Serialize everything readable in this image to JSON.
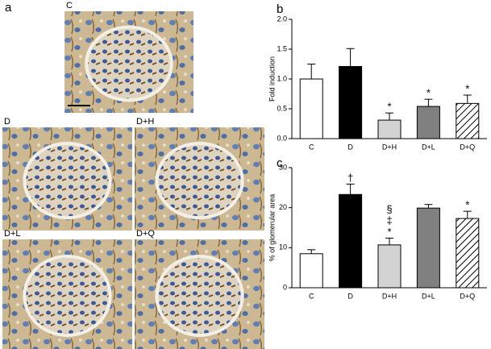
{
  "figure": {
    "panel_label": "a",
    "images": [
      {
        "label": "C"
      },
      {
        "label": "D"
      },
      {
        "label": "D+H"
      },
      {
        "label": "D+L"
      },
      {
        "label": "D+Q"
      }
    ]
  },
  "chart_data": [
    {
      "type": "bar",
      "panel_label": "b",
      "y_label": "Fold induction",
      "categories": [
        "C",
        "D",
        "D+H",
        "D+L",
        "D+Q"
      ],
      "values": [
        1.0,
        1.21,
        0.31,
        0.54,
        0.59
      ],
      "errors": [
        0.25,
        0.3,
        0.12,
        0.12,
        0.14
      ],
      "colors": [
        "#ffffff",
        "#000000",
        "#d3d3d3",
        "#808080",
        "#ffffff"
      ],
      "hatch": [
        false,
        false,
        false,
        false,
        true
      ],
      "annotations": [
        [],
        [],
        [
          "*"
        ],
        [
          "*"
        ],
        [
          "*"
        ]
      ],
      "ylim": [
        0,
        2.0
      ],
      "yticks": [
        {
          "value": 0,
          "label": "0.0"
        },
        0.5,
        {
          "value": 1,
          "label": "1.0"
        },
        1.5,
        {
          "value": 2,
          "label": "2.0"
        }
      ]
    },
    {
      "type": "bar",
      "panel_label": "c",
      "y_label": "% of glomerular area",
      "categories": [
        "C",
        "D",
        "D+H",
        "D+L",
        "D+Q"
      ],
      "values": [
        8.5,
        23.3,
        10.7,
        19.9,
        17.3
      ],
      "errors": [
        1.0,
        2.6,
        1.7,
        0.9,
        1.8
      ],
      "colors": [
        "#ffffff",
        "#000000",
        "#d3d3d3",
        "#808080",
        "#ffffff"
      ],
      "hatch": [
        false,
        false,
        false,
        false,
        true
      ],
      "annotations": [
        [],
        [
          "†"
        ],
        [
          "*",
          "‡",
          "§"
        ],
        [],
        [
          "*"
        ]
      ],
      "ylim": [
        0,
        30
      ],
      "yticks": [
        0,
        10,
        20,
        30
      ]
    }
  ]
}
